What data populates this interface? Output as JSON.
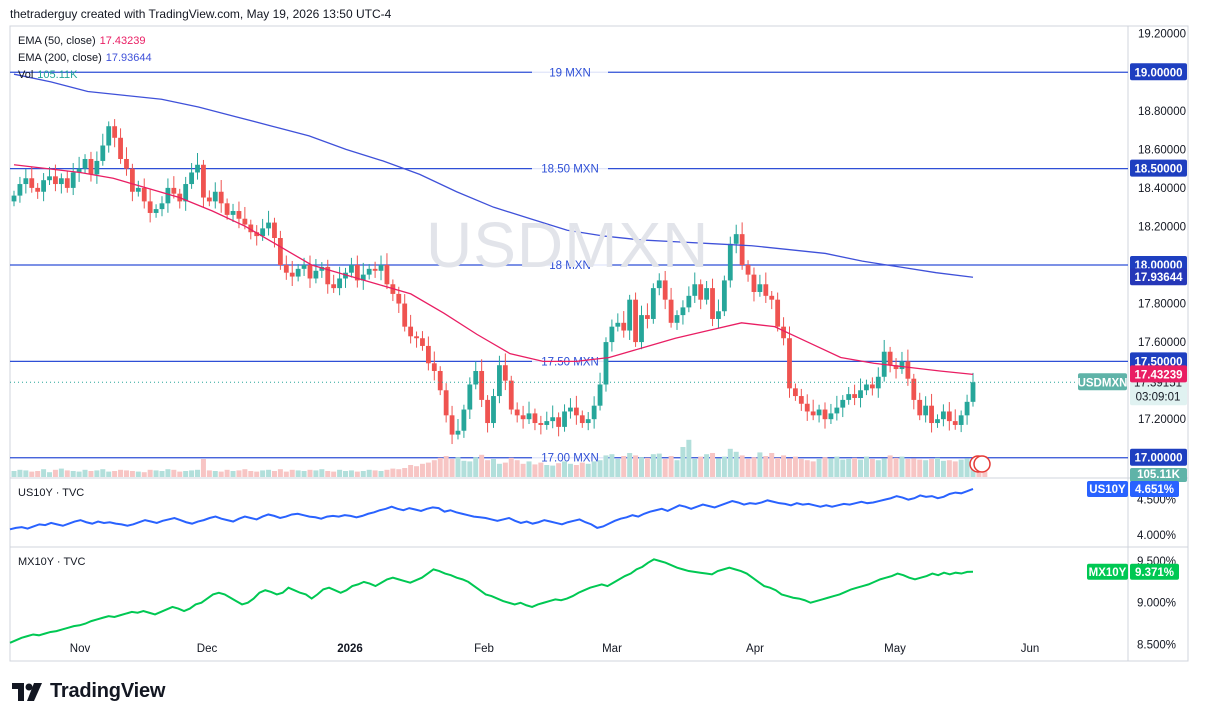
{
  "header": {
    "caption": "thetraderguy created with TradingView.com, May 19, 2026 13:50 UTC-4"
  },
  "watermark": "USDMXN",
  "brand": {
    "name": "TradingView"
  },
  "colors": {
    "up": "#26a69a",
    "down": "#ef5350",
    "ema50": "#e91e63",
    "ema200": "#3f51d9",
    "level_line": "#2e4fd6",
    "us10y": "#2962ff",
    "mx10y": "#00c853",
    "price_tag": "#5fb3a8"
  },
  "legend": {
    "ema50": {
      "label": "EMA (50, close)",
      "value": "17.43239"
    },
    "ema200": {
      "label": "EMA (200, close)",
      "value": "17.93644"
    },
    "vol": {
      "label": "Vol",
      "value": "105.11K"
    }
  },
  "panes": {
    "us10y_label": "US10Y · TVC",
    "mx10y_label": "MX10Y · TVC"
  },
  "chart_data": [
    {
      "type": "candlestick",
      "symbol": "USDMXN",
      "title": "USDMXN",
      "x_ticks": [
        "Nov",
        "Dec",
        "2026",
        "Feb",
        "Mar",
        "Apr",
        "May",
        "Jun"
      ],
      "y_ticks": [
        "19.20000",
        "18.80000",
        "18.60000",
        "18.40000",
        "18.20000",
        "17.80000",
        "17.60000",
        "17.20000"
      ],
      "ylim": [
        16.9,
        19.24
      ],
      "levels": [
        {
          "label": "19 MXN",
          "value": 19.0,
          "tag": "19.00000"
        },
        {
          "label": "18.50 MXN",
          "value": 18.5,
          "tag": "18.50000"
        },
        {
          "label": "18 MXN",
          "value": 18.0,
          "tag": "18.00000"
        },
        {
          "label": "17.50 MXN",
          "value": 17.5,
          "tag": "17.50000"
        },
        {
          "label": "17.00 MXN",
          "value": 17.0,
          "tag": "17.00000"
        }
      ],
      "last_price": {
        "symbol": "USDMXN",
        "value": "17.39151",
        "countdown": "03:09:01",
        "numeric": 17.3915
      },
      "ema50_tag": "17.43239",
      "ema200_tag": "17.93644",
      "volume_tag": "105.11K",
      "close_series": [
        18.36,
        18.42,
        18.45,
        18.4,
        18.38,
        18.44,
        18.46,
        18.42,
        18.45,
        18.4,
        18.48,
        18.5,
        18.55,
        18.47,
        18.54,
        18.62,
        18.72,
        18.66,
        18.55,
        18.5,
        18.38,
        18.4,
        18.33,
        18.27,
        18.29,
        18.32,
        18.4,
        18.37,
        18.33,
        18.42,
        18.48,
        18.52,
        18.35,
        18.33,
        18.38,
        18.32,
        18.26,
        18.28,
        18.24,
        18.21,
        18.17,
        18.15,
        18.19,
        18.22,
        18.14,
        18.0,
        17.96,
        17.94,
        17.98,
        18.0,
        17.93,
        17.97,
        17.99,
        17.9,
        17.88,
        17.93,
        17.96,
        18.0,
        17.92,
        17.95,
        17.98,
        17.97,
        18.0,
        17.9,
        17.85,
        17.8,
        17.68,
        17.63,
        17.62,
        17.58,
        17.49,
        17.45,
        17.35,
        17.22,
        17.12,
        17.14,
        17.25,
        17.38,
        17.45,
        17.3,
        17.18,
        17.32,
        17.48,
        17.4,
        17.25,
        17.22,
        17.2,
        17.23,
        17.18,
        17.17,
        17.19,
        17.21,
        17.16,
        17.24,
        17.26,
        17.22,
        17.18,
        17.2,
        17.27,
        17.38,
        17.6,
        17.68,
        17.7,
        17.66,
        17.82,
        17.6,
        17.74,
        17.72,
        17.88,
        17.92,
        17.82,
        17.7,
        17.74,
        17.78,
        17.84,
        17.9,
        17.82,
        17.88,
        17.72,
        17.76,
        17.92,
        18.11,
        18.16,
        18.0,
        17.95,
        17.86,
        17.9,
        17.84,
        17.82,
        17.68,
        17.62,
        17.36,
        17.32,
        17.28,
        17.24,
        17.22,
        17.25,
        17.2,
        17.23,
        17.26,
        17.3,
        17.33,
        17.31,
        17.35,
        17.38,
        17.36,
        17.42,
        17.55,
        17.48,
        17.46,
        17.5,
        17.41,
        17.3,
        17.22,
        17.27,
        17.18,
        17.2,
        17.24,
        17.19,
        17.17,
        17.22,
        17.29,
        17.3915
      ],
      "ema50_series": [
        18.52,
        18.5,
        18.48,
        18.45,
        18.4,
        18.35,
        18.28,
        18.2,
        18.1,
        18.0,
        17.95,
        17.9,
        17.85,
        17.75,
        17.64,
        17.54,
        17.5,
        17.5,
        17.52,
        17.57,
        17.62,
        17.66,
        17.7,
        17.68,
        17.6,
        17.52,
        17.49,
        17.47,
        17.45,
        17.43239
      ],
      "ema200_series": [
        18.99,
        18.95,
        18.9,
        18.88,
        18.86,
        18.82,
        18.77,
        18.72,
        18.67,
        18.6,
        18.54,
        18.47,
        18.38,
        18.3,
        18.24,
        18.18,
        18.15,
        18.13,
        18.12,
        18.11,
        18.1,
        18.08,
        18.06,
        18.02,
        17.99,
        17.96,
        17.93644
      ],
      "volume_series": [
        0.1,
        0.12,
        0.11,
        0.09,
        0.1,
        0.13,
        0.08,
        0.12,
        0.14,
        0.11,
        0.1,
        0.09,
        0.12,
        0.1,
        0.11,
        0.13,
        0.09,
        0.1,
        0.12,
        0.11,
        0.1,
        0.09,
        0.08,
        0.12,
        0.11,
        0.1,
        0.13,
        0.12,
        0.09,
        0.1,
        0.11,
        0.12,
        0.3,
        0.11,
        0.1,
        0.09,
        0.12,
        0.1,
        0.11,
        0.13,
        0.1,
        0.09,
        0.11,
        0.12,
        0.1,
        0.13,
        0.09,
        0.12,
        0.11,
        0.1,
        0.12,
        0.11,
        0.13,
        0.1,
        0.09,
        0.12,
        0.1,
        0.11,
        0.09,
        0.1,
        0.12,
        0.11,
        0.1,
        0.12,
        0.14,
        0.13,
        0.15,
        0.2,
        0.18,
        0.22,
        0.24,
        0.28,
        0.32,
        0.35,
        0.3,
        0.33,
        0.27,
        0.26,
        0.33,
        0.37,
        0.28,
        0.3,
        0.22,
        0.24,
        0.32,
        0.28,
        0.22,
        0.26,
        0.21,
        0.24,
        0.2,
        0.19,
        0.23,
        0.26,
        0.22,
        0.2,
        0.24,
        0.22,
        0.26,
        0.28,
        0.36,
        0.38,
        0.3,
        0.35,
        0.4,
        0.36,
        0.33,
        0.32,
        0.38,
        0.39,
        0.3,
        0.35,
        0.28,
        0.5,
        0.62,
        0.3,
        0.34,
        0.38,
        0.4,
        0.31,
        0.34,
        0.47,
        0.42,
        0.36,
        0.3,
        0.33,
        0.41,
        0.35,
        0.4,
        0.32,
        0.36,
        0.31,
        0.34,
        0.3,
        0.28,
        0.26,
        0.3,
        0.33,
        0.31,
        0.34,
        0.29,
        0.3,
        0.32,
        0.29,
        0.34,
        0.3,
        0.28,
        0.31,
        0.36,
        0.32,
        0.34,
        0.3,
        0.31,
        0.29,
        0.28,
        0.3,
        0.32,
        0.27,
        0.28,
        0.26,
        0.29,
        0.31,
        0.3,
        0.33,
        0.35
      ]
    },
    {
      "type": "line",
      "symbol": "US10Y",
      "title": "US10Y · TVC",
      "y_ticks": [
        "4.500%",
        "4.000%"
      ],
      "last_value": "4.651%",
      "ylim": [
        3.9,
        4.75
      ],
      "values": [
        4.08,
        4.1,
        4.11,
        4.09,
        4.12,
        4.15,
        4.14,
        4.17,
        4.15,
        4.13,
        4.16,
        4.19,
        4.21,
        4.18,
        4.16,
        4.19,
        4.17,
        4.18,
        4.16,
        4.15,
        4.13,
        4.15,
        4.18,
        4.21,
        4.19,
        4.17,
        4.2,
        4.22,
        4.24,
        4.21,
        4.18,
        4.16,
        4.19,
        4.21,
        4.24,
        4.26,
        4.23,
        4.21,
        4.19,
        4.23,
        4.26,
        4.24,
        4.22,
        4.26,
        4.29,
        4.27,
        4.24,
        4.26,
        4.29,
        4.3,
        4.28,
        4.26,
        4.25,
        4.23,
        4.26,
        4.27,
        4.26,
        4.28,
        4.27,
        4.25,
        4.27,
        4.3,
        4.32,
        4.35,
        4.37,
        4.4,
        4.37,
        4.35,
        4.38,
        4.36,
        4.34,
        4.37,
        4.39,
        4.38,
        4.33,
        4.35,
        4.32,
        4.3,
        4.28,
        4.26,
        4.25,
        4.24,
        4.22,
        4.2,
        4.22,
        4.24,
        4.2,
        4.17,
        4.19,
        4.16,
        4.18,
        4.21,
        4.19,
        4.17,
        4.15,
        4.18,
        4.2,
        4.22,
        4.18,
        4.15,
        4.1,
        4.12,
        4.16,
        4.2,
        4.23,
        4.25,
        4.28,
        4.26,
        4.3,
        4.33,
        4.35,
        4.37,
        4.34,
        4.38,
        4.42,
        4.4,
        4.37,
        4.4,
        4.43,
        4.41,
        4.39,
        4.42,
        4.45,
        4.48,
        4.46,
        4.43,
        4.45,
        4.44,
        4.46,
        4.49,
        4.47,
        4.45,
        4.44,
        4.42,
        4.45,
        4.43,
        4.44,
        4.42,
        4.4,
        4.42,
        4.4,
        4.42,
        4.44,
        4.43,
        4.45,
        4.47,
        4.45,
        4.46,
        4.48,
        4.5,
        4.52,
        4.55,
        4.53,
        4.5,
        4.52,
        4.56,
        4.54,
        4.55,
        4.52,
        4.54,
        4.58,
        4.6,
        4.59,
        4.62,
        4.651
      ]
    },
    {
      "type": "line",
      "symbol": "MX10Y",
      "title": "MX10Y · TVC",
      "y_ticks": [
        "9.500%",
        "9.000%",
        "8.500%"
      ],
      "last_value": "9.371%",
      "ylim": [
        8.35,
        9.62
      ],
      "values": [
        8.52,
        8.55,
        8.58,
        8.6,
        8.62,
        8.61,
        8.63,
        8.65,
        8.66,
        8.68,
        8.7,
        8.72,
        8.73,
        8.75,
        8.78,
        8.8,
        8.82,
        8.84,
        8.83,
        8.85,
        8.87,
        8.89,
        8.88,
        8.9,
        8.88,
        8.86,
        8.89,
        8.92,
        8.95,
        8.93,
        8.9,
        8.93,
        8.98,
        9.0,
        9.05,
        9.1,
        9.12,
        9.1,
        9.06,
        9.02,
        8.98,
        9.0,
        9.05,
        9.12,
        9.15,
        9.13,
        9.1,
        9.12,
        9.18,
        9.15,
        9.12,
        9.1,
        9.05,
        9.1,
        9.16,
        9.18,
        9.15,
        9.12,
        9.15,
        9.2,
        9.22,
        9.25,
        9.23,
        9.2,
        9.24,
        9.28,
        9.3,
        9.28,
        9.26,
        9.24,
        9.27,
        9.3,
        9.35,
        9.4,
        9.38,
        9.35,
        9.33,
        9.3,
        9.28,
        9.25,
        9.2,
        9.15,
        9.1,
        9.08,
        9.05,
        9.02,
        9.0,
        8.98,
        9.0,
        8.97,
        8.95,
        8.98,
        9.0,
        9.02,
        9.04,
        9.03,
        9.05,
        9.08,
        9.12,
        9.15,
        9.18,
        9.2,
        9.22,
        9.2,
        9.24,
        9.28,
        9.32,
        9.35,
        9.4,
        9.43,
        9.48,
        9.52,
        9.5,
        9.48,
        9.45,
        9.42,
        9.4,
        9.38,
        9.37,
        9.36,
        9.35,
        9.34,
        9.38,
        9.4,
        9.42,
        9.4,
        9.38,
        9.35,
        9.3,
        9.25,
        9.2,
        9.18,
        9.15,
        9.1,
        9.08,
        9.06,
        9.05,
        9.03,
        9.0,
        9.02,
        9.04,
        9.06,
        9.08,
        9.1,
        9.13,
        9.16,
        9.18,
        9.2,
        9.22,
        9.25,
        9.28,
        9.3,
        9.32,
        9.35,
        9.33,
        9.3,
        9.28,
        9.3,
        9.32,
        9.35,
        9.33,
        9.36,
        9.34,
        9.36,
        9.35,
        9.37,
        9.371
      ]
    }
  ]
}
